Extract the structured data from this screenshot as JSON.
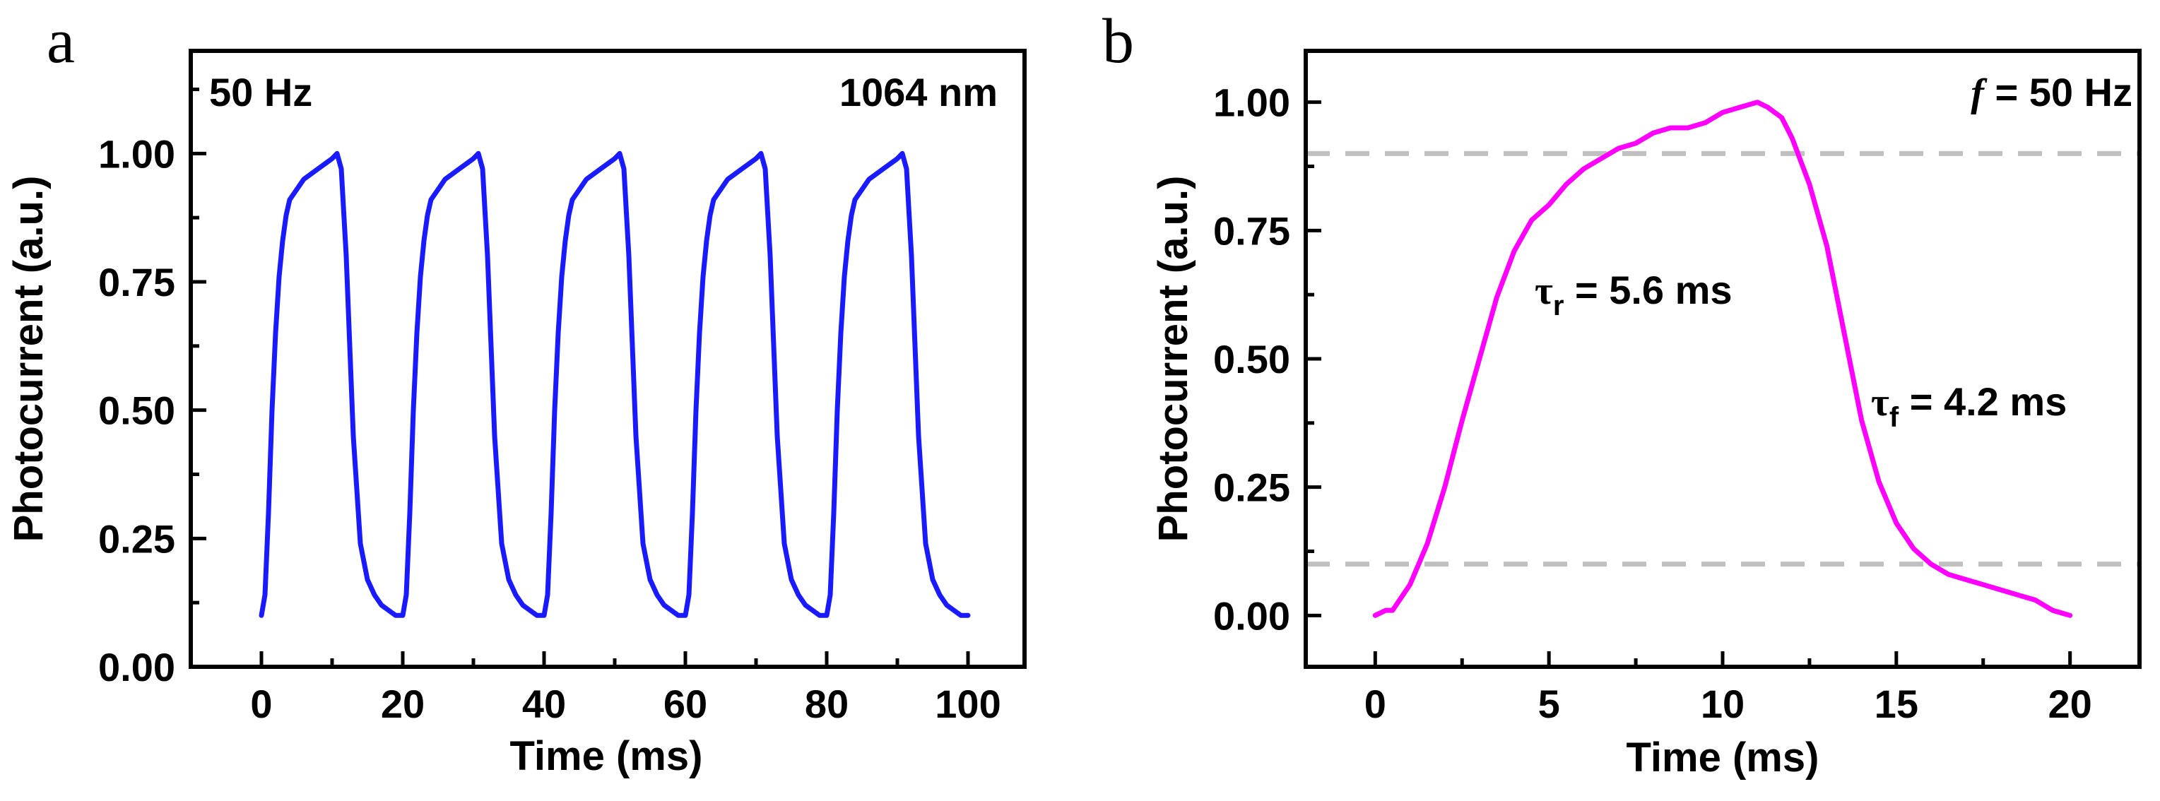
{
  "chart_data": [
    {
      "type": "line",
      "panel_label": "a",
      "xlabel": "Time (ms)",
      "ylabel": "Photocurrent (a.u.)",
      "xlim": [
        -10,
        108
      ],
      "ylim": [
        0,
        1.2
      ],
      "xticks": [
        0,
        20,
        40,
        60,
        80,
        100
      ],
      "xtick_labels": [
        "0",
        "20",
        "40",
        "60",
        "80",
        "100"
      ],
      "yticks": [
        0,
        0.25,
        0.5,
        0.75,
        1.0
      ],
      "ytick_labels": [
        "0.00",
        "0.25",
        "0.50",
        "0.75",
        "1.00"
      ],
      "annotations": {
        "frequency": "50 Hz",
        "wavelength": "1064 nm"
      },
      "series": [
        {
          "name": "Photocurrent",
          "color": "#1a1aff",
          "period_ms": 20,
          "cycles": 5,
          "one_cycle": {
            "x": [
              0,
              0.5,
              1,
              1.5,
              2,
              2.5,
              3,
              3.5,
              4,
              5,
              6,
              7,
              8,
              9,
              10,
              10.7,
              11.3,
              12,
              13,
              14,
              15,
              16,
              17,
              18,
              19,
              20
            ],
            "y": [
              0.1,
              0.14,
              0.3,
              0.5,
              0.65,
              0.76,
              0.83,
              0.88,
              0.91,
              0.93,
              0.95,
              0.96,
              0.97,
              0.98,
              0.99,
              1.0,
              0.97,
              0.8,
              0.45,
              0.24,
              0.17,
              0.14,
              0.12,
              0.11,
              0.1,
              0.1
            ]
          }
        }
      ]
    },
    {
      "type": "line",
      "panel_label": "b",
      "xlabel": "Time (ms)",
      "ylabel": "Photocurrent (a.u.)",
      "xlim": [
        -2,
        22
      ],
      "ylim": [
        -0.1,
        1.1
      ],
      "xticks": [
        0,
        5,
        10,
        15,
        20
      ],
      "xtick_labels": [
        "0",
        "5",
        "10",
        "15",
        "20"
      ],
      "yticks": [
        0,
        0.25,
        0.5,
        0.75,
        1.0
      ],
      "ytick_labels": [
        "0.00",
        "0.25",
        "0.50",
        "0.75",
        "1.00"
      ],
      "annotations": {
        "frequency_symbol": "f",
        "frequency_text": " = 50 Hz",
        "rise_symbol": "τ",
        "rise_sub": "r",
        "rise_text": " = 5.6 ms",
        "fall_symbol": "τ",
        "fall_sub": "f",
        "fall_text": " = 4.2 ms"
      },
      "reference_lines": [
        0.1,
        0.9
      ],
      "reference_line_color": "#c0c0c0",
      "series": [
        {
          "name": "Photocurrent",
          "color": "#ff00ff",
          "x": [
            0,
            0.3,
            0.5,
            1.0,
            1.5,
            2.0,
            2.5,
            3.0,
            3.5,
            4.0,
            4.5,
            5.0,
            5.5,
            6.0,
            6.5,
            7.0,
            7.5,
            8.0,
            8.5,
            9.0,
            9.5,
            10.0,
            10.5,
            11.0,
            11.3,
            11.7,
            12.0,
            12.5,
            13.0,
            13.5,
            14.0,
            14.5,
            15.0,
            15.5,
            16.0,
            16.5,
            17.0,
            17.5,
            18.0,
            18.5,
            19.0,
            19.5,
            20.0
          ],
          "y": [
            0.0,
            0.01,
            0.01,
            0.06,
            0.14,
            0.25,
            0.38,
            0.5,
            0.62,
            0.71,
            0.77,
            0.8,
            0.84,
            0.87,
            0.89,
            0.91,
            0.92,
            0.94,
            0.95,
            0.95,
            0.96,
            0.98,
            0.99,
            1.0,
            0.99,
            0.97,
            0.93,
            0.84,
            0.72,
            0.55,
            0.38,
            0.26,
            0.18,
            0.13,
            0.1,
            0.08,
            0.07,
            0.06,
            0.05,
            0.04,
            0.03,
            0.01,
            0.0
          ]
        }
      ]
    }
  ]
}
